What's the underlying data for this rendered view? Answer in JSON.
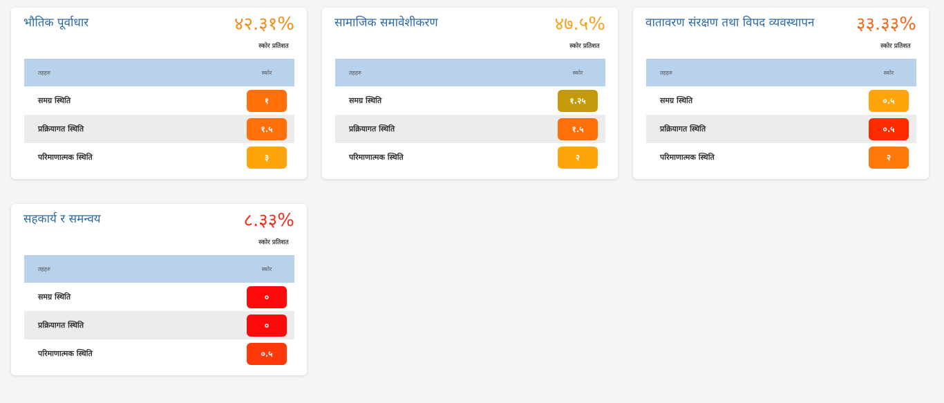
{
  "table_headers": {
    "col1": "तहहरु",
    "col2": "स्कोर"
  },
  "pct_caption": "स्कोर प्रतिशत",
  "cards": [
    {
      "title": "भौतिक पूर्वाधार",
      "percent": "४२.३१%",
      "percent_color": "#f28c1e",
      "rows": [
        {
          "label": "समग्र स्थिति",
          "score": "१",
          "color": "#ff6f0a"
        },
        {
          "label": "प्रक्रियागत स्थिति",
          "score": "१.५",
          "color": "#ff6f0a"
        },
        {
          "label": "परिमाणात्मक स्थिति",
          "score": "३",
          "color": "#ffa40a"
        }
      ]
    },
    {
      "title": "सामाजिक समावेशीकरण",
      "percent": "४७.५%",
      "percent_color": "#f5a21f",
      "rows": [
        {
          "label": "समग्र स्थिति",
          "score": "१.२५",
          "color": "#c49a0a"
        },
        {
          "label": "प्रक्रियागत स्थिति",
          "score": "१.५",
          "color": "#ff6f0a"
        },
        {
          "label": "परिमाणात्मक स्थिति",
          "score": "२",
          "color": "#ffa40a"
        }
      ]
    },
    {
      "title": "वातावरण संरक्षण तथा विपद व्यवस्थापन",
      "percent": "३३.३३%",
      "percent_color": "#f06a1e",
      "rows": [
        {
          "label": "समग्र स्थिति",
          "score": "०.५",
          "color": "#ffa40a"
        },
        {
          "label": "प्रक्रियागत स्थिति",
          "score": "०.५",
          "color": "#ff2a00"
        },
        {
          "label": "परिमाणात्मक स्थिति",
          "score": "२",
          "color": "#ff7a0a"
        }
      ]
    },
    {
      "title": "सहकार्य र समन्वय",
      "percent": "८.३३%",
      "percent_color": "#e8321e",
      "rows": [
        {
          "label": "समग्र स्थिति",
          "score": "०",
          "color": "#ff0a0a"
        },
        {
          "label": "प्रक्रियागत स्थिति",
          "score": "०",
          "color": "#ff0a0a"
        },
        {
          "label": "परिमाणात्मक स्थिति",
          "score": "०.५",
          "color": "#ff3a0a"
        }
      ]
    }
  ]
}
